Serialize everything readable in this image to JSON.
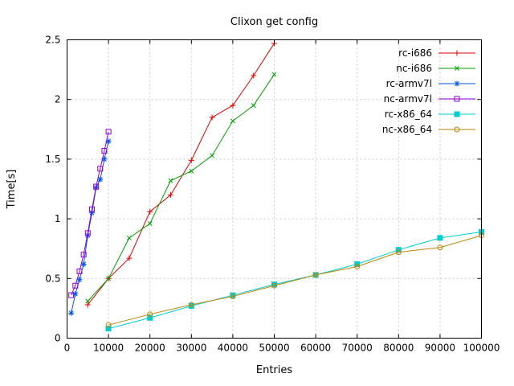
{
  "chart_data": {
    "type": "line",
    "title": "Clixon get config",
    "xlabel": "Entries",
    "ylabel": "Time[s]",
    "xlim": [
      0,
      100000
    ],
    "ylim": [
      0,
      2.5
    ],
    "xticks": [
      0,
      10000,
      20000,
      30000,
      40000,
      50000,
      60000,
      70000,
      80000,
      90000,
      100000
    ],
    "yticks": [
      0,
      0.5,
      1,
      1.5,
      2,
      2.5
    ],
    "grid": true,
    "legend_position": "top-right-inside",
    "background_color": "#ffffff",
    "grid_color": "#c8c8c8",
    "series": [
      {
        "name": "rc-i686",
        "color": "#e00000",
        "marker": "plus",
        "points": [
          [
            5000,
            0.28
          ],
          [
            10000,
            0.5
          ],
          [
            15000,
            0.67
          ],
          [
            20000,
            1.06
          ],
          [
            25000,
            1.2
          ],
          [
            30000,
            1.49
          ],
          [
            35000,
            1.85
          ],
          [
            40000,
            1.95
          ],
          [
            45000,
            2.2
          ],
          [
            50000,
            2.47
          ]
        ]
      },
      {
        "name": "nc-i686",
        "color": "#00a000",
        "marker": "cross",
        "points": [
          [
            5000,
            0.31
          ],
          [
            10000,
            0.5
          ],
          [
            15000,
            0.84
          ],
          [
            20000,
            0.96
          ],
          [
            25000,
            1.32
          ],
          [
            30000,
            1.4
          ],
          [
            35000,
            1.53
          ],
          [
            40000,
            1.82
          ],
          [
            45000,
            1.95
          ],
          [
            50000,
            2.21
          ]
        ]
      },
      {
        "name": "rc-armv7l",
        "color": "#0055ee",
        "marker": "asterisk",
        "points": [
          [
            1000,
            0.21
          ],
          [
            2000,
            0.37
          ],
          [
            3000,
            0.49
          ],
          [
            4000,
            0.62
          ],
          [
            5000,
            0.86
          ],
          [
            6000,
            1.05
          ],
          [
            7000,
            1.26
          ],
          [
            8000,
            1.33
          ],
          [
            9000,
            1.5
          ],
          [
            10000,
            1.65
          ]
        ]
      },
      {
        "name": "nc-armv7l",
        "color": "#9400d3",
        "marker": "square-open",
        "points": [
          [
            1000,
            0.36
          ],
          [
            2000,
            0.44
          ],
          [
            3000,
            0.56
          ],
          [
            4000,
            0.7
          ],
          [
            5000,
            0.88
          ],
          [
            6000,
            1.08
          ],
          [
            7000,
            1.27
          ],
          [
            8000,
            1.42
          ],
          [
            9000,
            1.57
          ],
          [
            10000,
            1.73
          ]
        ]
      },
      {
        "name": "rc-x86_64",
        "color": "#00cdcd",
        "marker": "square-filled",
        "points": [
          [
            10000,
            0.08
          ],
          [
            20000,
            0.17
          ],
          [
            30000,
            0.27
          ],
          [
            40000,
            0.36
          ],
          [
            50000,
            0.45
          ],
          [
            60000,
            0.53
          ],
          [
            70000,
            0.62
          ],
          [
            80000,
            0.74
          ],
          [
            90000,
            0.84
          ],
          [
            100000,
            0.89
          ]
        ]
      },
      {
        "name": "nc-x86_64",
        "color": "#b8860b",
        "marker": "circle-open",
        "points": [
          [
            10000,
            0.11
          ],
          [
            20000,
            0.2
          ],
          [
            30000,
            0.28
          ],
          [
            40000,
            0.35
          ],
          [
            50000,
            0.44
          ],
          [
            60000,
            0.53
          ],
          [
            70000,
            0.6
          ],
          [
            80000,
            0.72
          ],
          [
            90000,
            0.76
          ],
          [
            100000,
            0.86
          ]
        ]
      }
    ]
  }
}
